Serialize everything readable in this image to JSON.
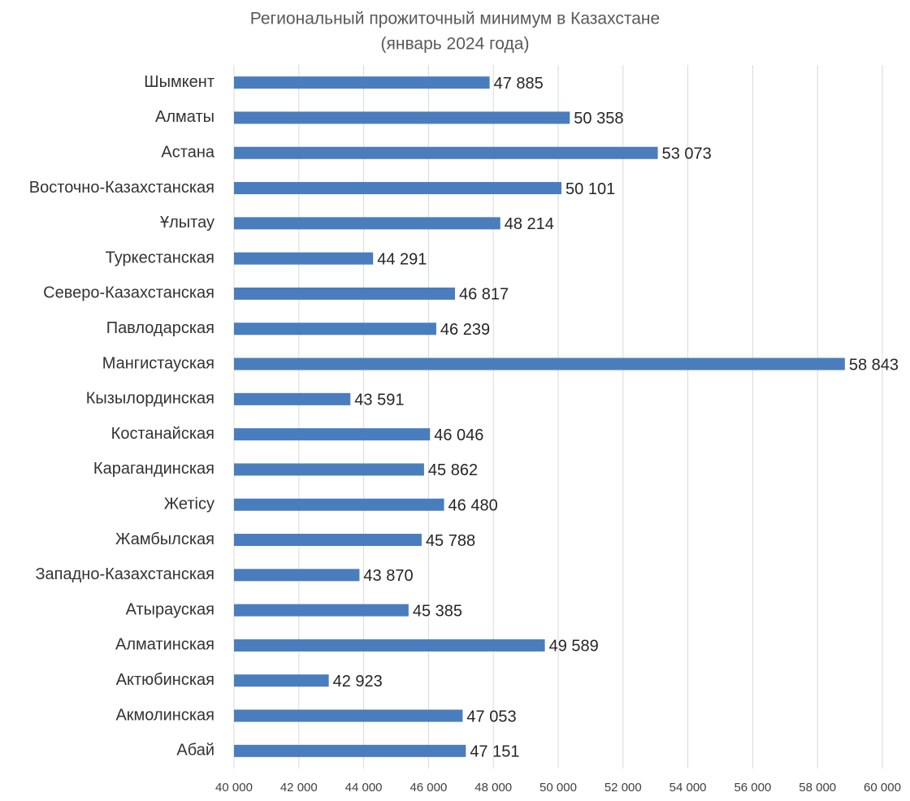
{
  "chart_data": {
    "type": "bar",
    "orientation": "horizontal",
    "title": "Региональный прожиточный минимум в Казахстане",
    "subtitle": "(январь 2024 года)",
    "categories": [
      "Шымкент",
      "Алматы",
      "Астана",
      "Восточно-Казахстанская",
      "Ұлытау",
      "Туркестанская",
      "Северо-Казахстанская",
      "Павлодарская",
      "Мангистауская",
      "Кызылординская",
      "Костанайская",
      "Карагандинская",
      "Жетісу",
      "Жамбылская",
      "Западно-Казахстанская",
      "Атырауская",
      "Алматинская",
      "Актюбинская",
      "Акмолинская",
      "Абай"
    ],
    "values": [
      47885,
      50358,
      53073,
      50101,
      48214,
      44291,
      46817,
      46239,
      58843,
      43591,
      46046,
      45862,
      46480,
      45788,
      43870,
      45385,
      49589,
      42923,
      47053,
      47151
    ],
    "value_labels": [
      "47 885",
      "50 358",
      "53 073",
      "50 101",
      "48 214",
      "44 291",
      "46 817",
      "46 239",
      "58 843",
      "43 591",
      "46 046",
      "45 862",
      "46 480",
      "45 788",
      "43 870",
      "45 385",
      "49 589",
      "42 923",
      "47 053",
      "47 151"
    ],
    "color": "#4a7dbd",
    "xlim": [
      40000,
      60000
    ],
    "xticks": [
      {
        "value": 40000,
        "label": "40 000"
      },
      {
        "value": 42000,
        "label": "42 000"
      },
      {
        "value": 44000,
        "label": "44 000"
      },
      {
        "value": 46000,
        "label": "46 000"
      },
      {
        "value": 48000,
        "label": "48 000"
      },
      {
        "value": 50000,
        "label": "50 000"
      },
      {
        "value": 52000,
        "label": "52 000"
      },
      {
        "value": 54000,
        "label": "54 000"
      },
      {
        "value": 56000,
        "label": "56 000"
      },
      {
        "value": 58000,
        "label": "58 000"
      },
      {
        "value": 60000,
        "label": "60 000"
      }
    ],
    "grid": true
  }
}
